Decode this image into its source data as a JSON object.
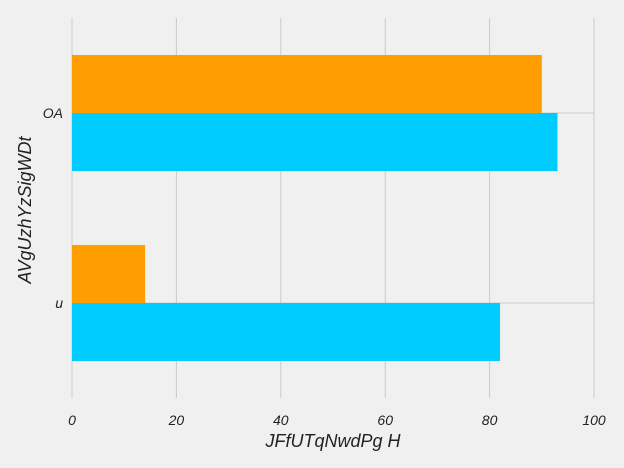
{
  "chart_data": {
    "type": "bar",
    "orientation": "horizontal",
    "title": "",
    "xlabel": "JFfUTqNwdPg H",
    "ylabel": "AVgUzhYzSigWDt",
    "categories": [
      "u",
      "OA"
    ],
    "series": [
      {
        "values": [
          82,
          93
        ],
        "color": "#00ccff"
      },
      {
        "values": [
          14,
          90
        ],
        "color": "#ff9e00"
      }
    ],
    "xlim": [
      0,
      100
    ],
    "xticks": [
      "0",
      "20",
      "40",
      "60",
      "80",
      "100"
    ],
    "grid": true,
    "legend": "none"
  },
  "colors": {
    "background": "#f0f0f0",
    "grid": "#cbcbcb",
    "text": "#222222"
  }
}
